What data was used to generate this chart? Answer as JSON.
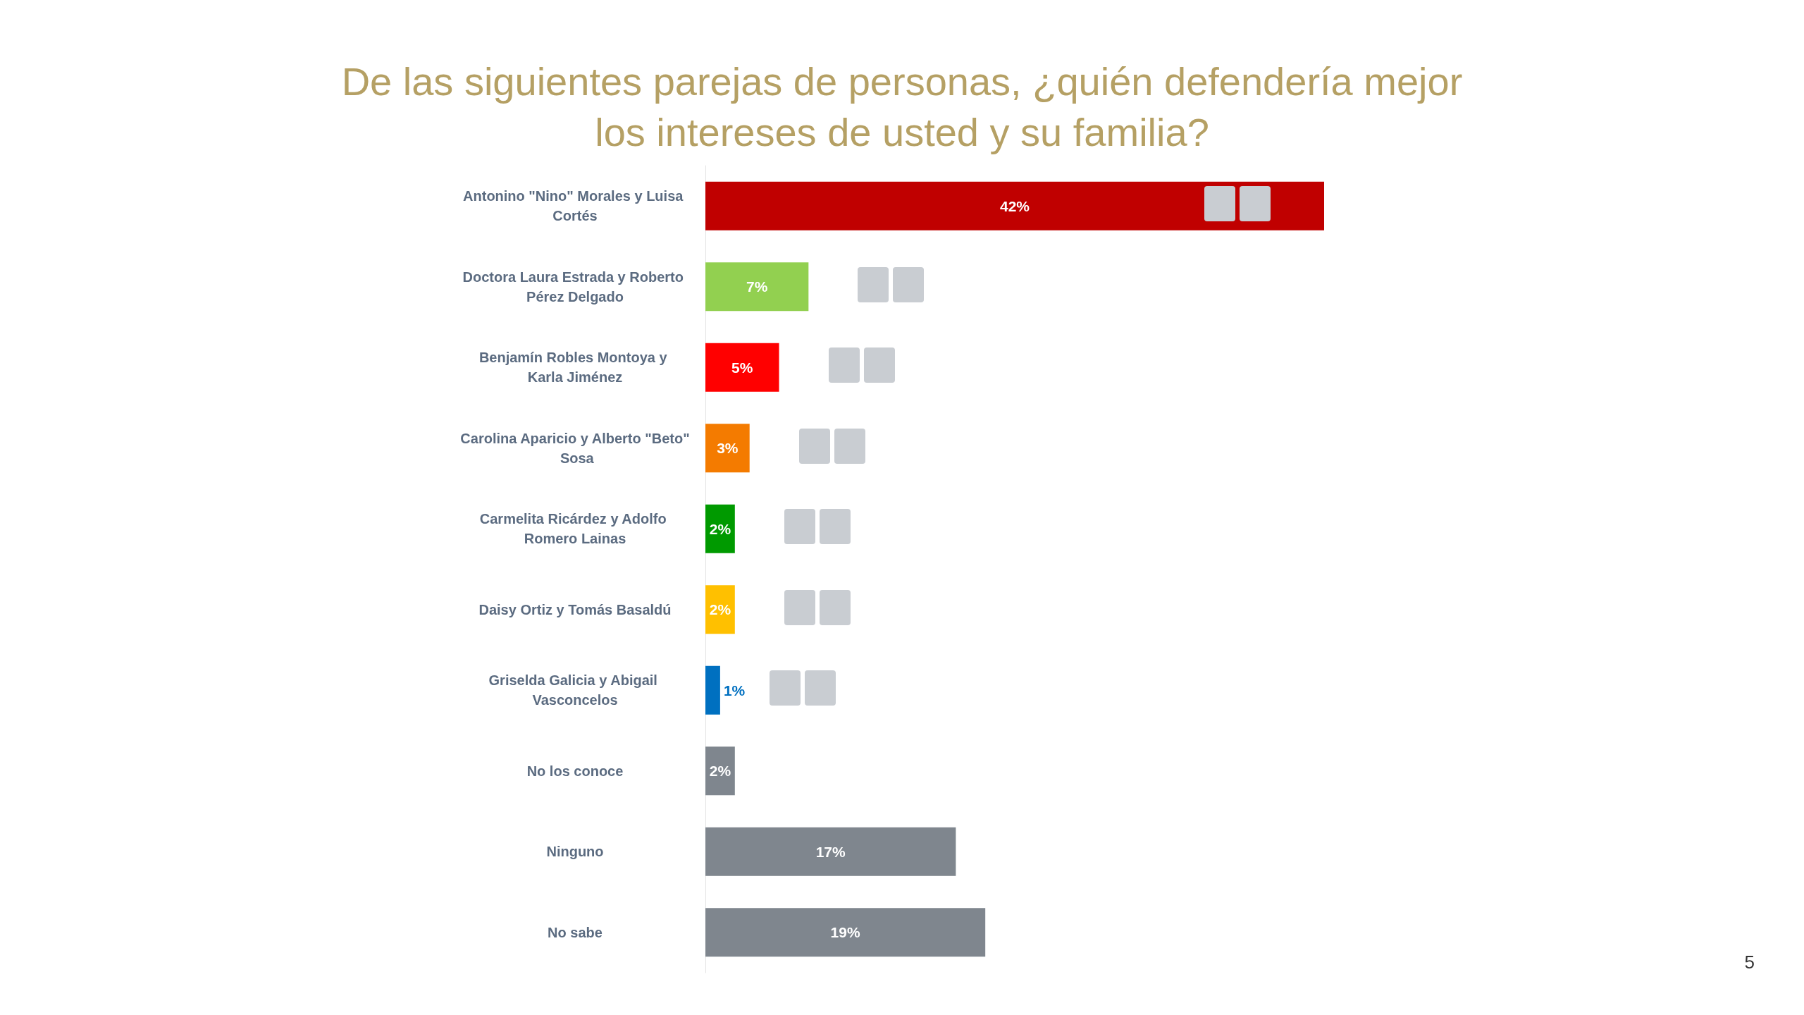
{
  "chart_data": {
    "type": "bar",
    "orientation": "horizontal",
    "title": "De las siguientes parejas de personas, ¿quién defendería mejor los intereses de usted y su familia?",
    "categories": [
      "Antonino \"Nino\" Morales y Luisa Cortés",
      "Doctora Laura Estrada y Roberto Pérez Delgado",
      "Benjamín Robles Montoya y Karla Jiménez",
      "Carolina Aparicio y Alberto \"Beto\" Sosa",
      "Carmelita Ricárdez y Adolfo Romero Lainas",
      "Daisy Ortiz y Tomás Basaldú",
      "Griselda Galicia y Abigail Vasconcelos",
      "No los conoce",
      "Ninguno",
      "No sabe"
    ],
    "values": [
      42,
      7,
      5,
      3,
      2,
      2,
      1,
      2,
      17,
      19
    ],
    "colors": [
      "#c00000",
      "#92d050",
      "#ff0000",
      "#f47b00",
      "#009a00",
      "#ffc000",
      "#0070c0",
      "#7f868e",
      "#7f868e",
      "#7f868e"
    ],
    "value_labels": [
      "42%",
      "7%",
      "5%",
      "3%",
      "2%",
      "2%",
      "1%",
      "2%",
      "17%",
      "19%"
    ],
    "annotations": [
      "5"
    ],
    "grid": false
  }
}
